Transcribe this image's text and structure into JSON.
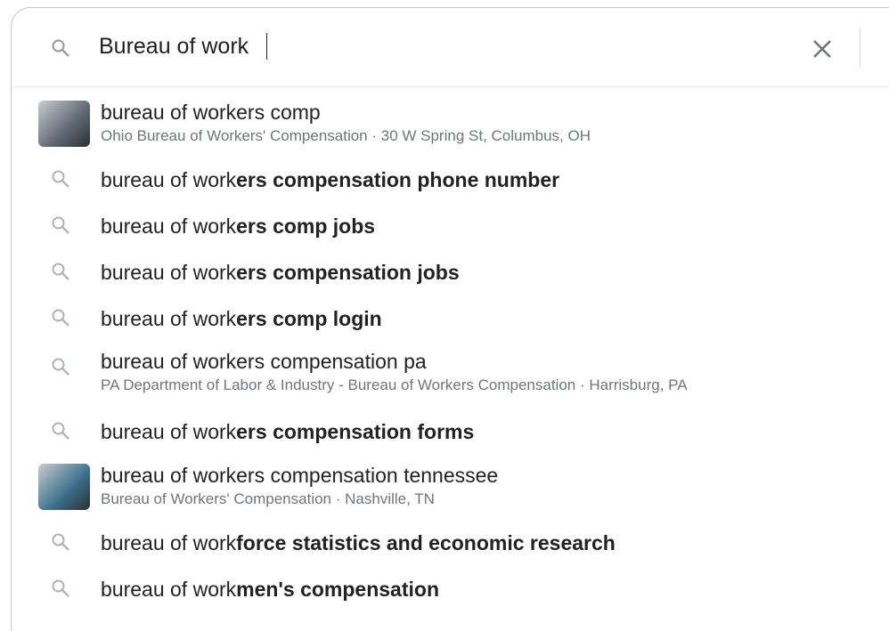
{
  "search": {
    "query": "Bureau of work"
  },
  "suggestions": [
    {
      "text": "bureau of workers comp",
      "detail": "Ohio Bureau of Workers' Compensation · 30 W Spring St, Columbus, OH"
    },
    {
      "text": "bureau of work",
      "bold": "ers compensation phone number"
    },
    {
      "text": "bureau of work",
      "bold": "ers comp jobs"
    },
    {
      "text": "bureau of work",
      "bold": "ers compensation jobs"
    },
    {
      "text": "bureau of work",
      "bold": "ers comp login"
    },
    {
      "text": "bureau of workers compensation pa",
      "detail": "PA Department of Labor & Industry - Bureau of Workers Compensation · Harrisburg, PA"
    },
    {
      "text": "bureau of work",
      "bold": "ers compensation forms"
    },
    {
      "text": "bureau of workers compensation tennessee",
      "detail": "Bureau of Workers' Compensation · Nashville, TN"
    },
    {
      "text": "bureau of work",
      "bold": "force statistics and economic research"
    },
    {
      "text": "bureau of work",
      "bold": "men's compensation"
    }
  ]
}
